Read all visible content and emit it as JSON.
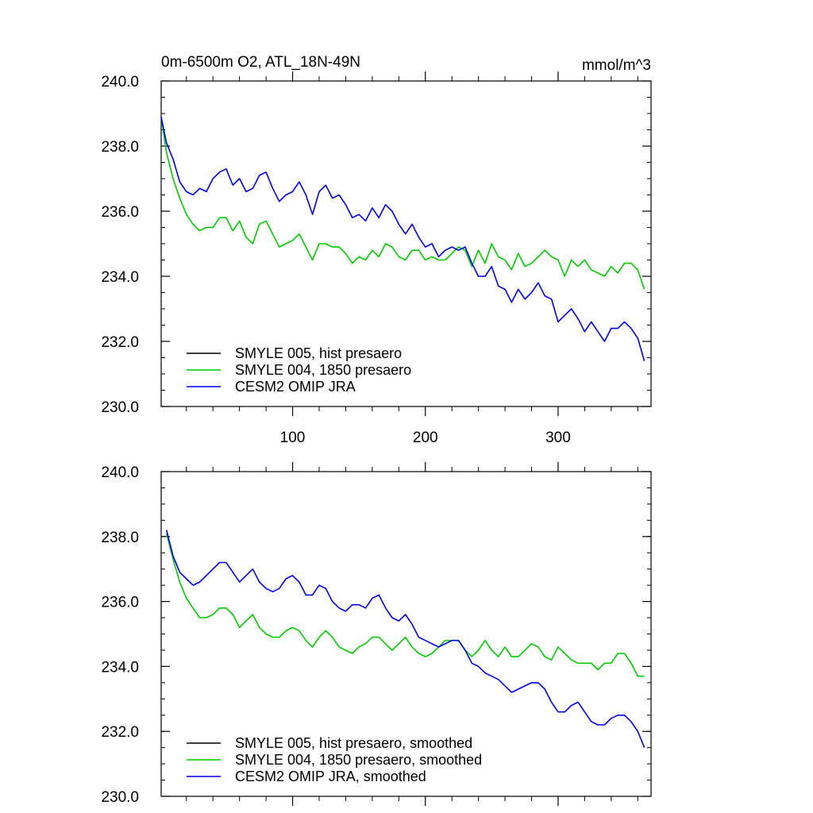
{
  "figure": {
    "left_title": "0m-6500m O2, ATL_18N-49N",
    "right_title": "mmol/m^3"
  },
  "chart_data": [
    {
      "type": "line",
      "panel": "top",
      "title": "0m-6500m O2, ATL_18N-49N",
      "units": "mmol/m^3",
      "xlim": [
        1,
        370
      ],
      "ylim": [
        230.0,
        240.0
      ],
      "xticks": [
        100,
        200,
        300
      ],
      "xtick_labels": [
        "100",
        "200",
        "300"
      ],
      "yticks": [
        230.0,
        232.0,
        234.0,
        236.0,
        238.0,
        240.0
      ],
      "ytick_labels": [
        "230.0",
        "232.0",
        "234.0",
        "236.0",
        "238.0",
        "240.0"
      ],
      "legend_position": "bottom-left",
      "series": [
        {
          "name": "SMYLE 005, hist presaero",
          "color": "#000000",
          "x": [],
          "y": []
        },
        {
          "name": "SMYLE 004, 1850 presaero",
          "color": "#00cc00",
          "x": [
            1,
            5,
            10,
            15,
            20,
            25,
            30,
            35,
            40,
            45,
            50,
            55,
            60,
            65,
            70,
            75,
            80,
            85,
            90,
            95,
            100,
            105,
            110,
            115,
            120,
            125,
            130,
            135,
            140,
            145,
            150,
            155,
            160,
            165,
            170,
            175,
            180,
            185,
            190,
            195,
            200,
            205,
            210,
            215,
            220,
            225,
            230,
            235,
            240,
            245,
            250,
            255,
            260,
            265,
            270,
            275,
            280,
            285,
            290,
            295,
            300,
            305,
            310,
            315,
            320,
            325,
            330,
            335,
            340,
            345,
            350,
            355,
            360,
            365
          ],
          "y": [
            238.9,
            237.8,
            237.0,
            236.4,
            235.9,
            235.6,
            235.4,
            235.5,
            235.5,
            235.8,
            235.8,
            235.4,
            235.7,
            235.2,
            235.0,
            235.6,
            235.7,
            235.3,
            234.9,
            235.0,
            235.1,
            235.3,
            234.9,
            234.5,
            235.0,
            235.0,
            234.9,
            234.9,
            234.7,
            234.4,
            234.6,
            234.5,
            234.8,
            234.6,
            235.0,
            234.9,
            234.6,
            234.5,
            234.8,
            234.8,
            234.5,
            234.6,
            234.5,
            234.5,
            234.7,
            234.9,
            234.8,
            234.3,
            234.8,
            234.4,
            235.0,
            234.6,
            234.5,
            234.2,
            234.7,
            234.3,
            234.4,
            234.6,
            234.8,
            234.6,
            234.5,
            234.0,
            234.5,
            234.3,
            234.5,
            234.2,
            234.1,
            234.0,
            234.3,
            234.1,
            234.4,
            234.4,
            234.2,
            233.6
          ]
        },
        {
          "name": "CESM2 OMIP JRA",
          "color": "#0000ee",
          "x": [
            1,
            5,
            10,
            15,
            20,
            25,
            30,
            35,
            40,
            45,
            50,
            55,
            60,
            65,
            70,
            75,
            80,
            85,
            90,
            95,
            100,
            105,
            110,
            115,
            120,
            125,
            130,
            135,
            140,
            145,
            150,
            155,
            160,
            165,
            170,
            175,
            180,
            185,
            190,
            195,
            200,
            205,
            210,
            215,
            220,
            225,
            230,
            235,
            240,
            245,
            250,
            255,
            260,
            265,
            270,
            275,
            280,
            285,
            290,
            295,
            300,
            305,
            310,
            315,
            320,
            325,
            330,
            335,
            340,
            345,
            350,
            355,
            360,
            365
          ],
          "y": [
            238.9,
            238.1,
            237.6,
            236.9,
            236.6,
            236.5,
            236.7,
            236.6,
            237.0,
            237.2,
            237.3,
            236.8,
            237.0,
            236.6,
            236.7,
            237.1,
            237.2,
            236.7,
            236.3,
            236.5,
            236.6,
            236.9,
            236.5,
            235.9,
            236.6,
            236.8,
            236.4,
            236.5,
            236.2,
            235.8,
            235.9,
            235.7,
            236.1,
            235.8,
            236.2,
            236.0,
            235.6,
            235.3,
            235.6,
            235.2,
            234.9,
            235.0,
            234.6,
            234.8,
            234.9,
            234.8,
            234.9,
            234.4,
            234.0,
            234.0,
            234.3,
            233.7,
            233.6,
            233.2,
            233.6,
            233.3,
            233.5,
            233.8,
            233.4,
            233.3,
            232.6,
            232.8,
            233.0,
            232.7,
            232.3,
            232.6,
            232.3,
            232.0,
            232.4,
            232.4,
            232.6,
            232.4,
            232.1,
            231.4
          ]
        }
      ]
    },
    {
      "type": "line",
      "panel": "bottom",
      "xlim": [
        1,
        370
      ],
      "ylim": [
        230.0,
        240.0
      ],
      "xticks": [
        100,
        200,
        300
      ],
      "yticks": [
        230.0,
        232.0,
        234.0,
        236.0,
        238.0,
        240.0
      ],
      "ytick_labels": [
        "230.0",
        "232.0",
        "234.0",
        "236.0",
        "238.0",
        "240.0"
      ],
      "legend_position": "bottom-left",
      "series": [
        {
          "name": "SMYLE 005, hist presaero, smoothed",
          "color": "#000000",
          "x": [],
          "y": []
        },
        {
          "name": "SMYLE 004, 1850 presaero, smoothed",
          "color": "#00cc00",
          "x": [
            5,
            10,
            15,
            20,
            25,
            30,
            35,
            40,
            45,
            50,
            55,
            60,
            65,
            70,
            75,
            80,
            85,
            90,
            95,
            100,
            105,
            110,
            115,
            120,
            125,
            130,
            135,
            140,
            145,
            150,
            155,
            160,
            165,
            170,
            175,
            180,
            185,
            190,
            195,
            200,
            205,
            210,
            215,
            220,
            225,
            230,
            235,
            240,
            245,
            250,
            255,
            260,
            265,
            270,
            275,
            280,
            285,
            290,
            295,
            300,
            305,
            310,
            315,
            320,
            325,
            330,
            335,
            340,
            345,
            350,
            355,
            360,
            365
          ],
          "y": [
            238.1,
            237.3,
            236.6,
            236.1,
            235.8,
            235.5,
            235.5,
            235.6,
            235.8,
            235.8,
            235.6,
            235.2,
            235.4,
            235.6,
            235.2,
            235.0,
            234.9,
            234.9,
            235.1,
            235.2,
            235.1,
            234.8,
            234.6,
            234.9,
            235.1,
            234.9,
            234.6,
            234.5,
            234.4,
            234.6,
            234.7,
            234.9,
            234.9,
            234.7,
            234.5,
            234.7,
            234.9,
            234.6,
            234.4,
            234.3,
            234.4,
            234.6,
            234.8,
            234.8,
            234.8,
            234.5,
            234.3,
            234.5,
            234.8,
            234.5,
            234.3,
            234.6,
            234.3,
            234.3,
            234.5,
            234.7,
            234.6,
            234.3,
            234.2,
            234.6,
            234.4,
            234.2,
            234.1,
            234.1,
            234.1,
            233.9,
            234.1,
            234.1,
            234.4,
            234.4,
            234.1,
            233.7,
            233.7
          ]
        },
        {
          "name": "CESM2 OMIP JRA, smoothed",
          "color": "#0000ee",
          "x": [
            5,
            10,
            15,
            20,
            25,
            30,
            35,
            40,
            45,
            50,
            55,
            60,
            65,
            70,
            75,
            80,
            85,
            90,
            95,
            100,
            105,
            110,
            115,
            120,
            125,
            130,
            135,
            140,
            145,
            150,
            155,
            160,
            165,
            170,
            175,
            180,
            185,
            190,
            195,
            200,
            205,
            210,
            215,
            220,
            225,
            230,
            235,
            240,
            245,
            250,
            255,
            260,
            265,
            270,
            275,
            280,
            285,
            290,
            295,
            300,
            305,
            310,
            315,
            320,
            325,
            330,
            335,
            340,
            345,
            350,
            355,
            360,
            365
          ],
          "y": [
            238.2,
            237.4,
            236.9,
            236.7,
            236.5,
            236.6,
            236.8,
            237.0,
            237.2,
            237.2,
            236.9,
            236.6,
            236.8,
            237.0,
            236.6,
            236.4,
            236.3,
            236.4,
            236.7,
            236.8,
            236.6,
            236.2,
            236.2,
            236.5,
            236.4,
            236.0,
            235.8,
            235.7,
            235.9,
            235.9,
            235.8,
            236.1,
            236.2,
            235.8,
            235.5,
            235.4,
            235.6,
            235.3,
            234.9,
            234.8,
            234.7,
            234.6,
            234.7,
            234.8,
            234.8,
            234.5,
            234.1,
            234.0,
            233.8,
            233.7,
            233.6,
            233.4,
            233.2,
            233.3,
            233.4,
            233.5,
            233.5,
            233.3,
            232.9,
            232.6,
            232.6,
            232.8,
            232.9,
            232.6,
            232.3,
            232.2,
            232.2,
            232.4,
            232.5,
            232.5,
            232.3,
            232.0,
            231.5
          ]
        }
      ]
    }
  ]
}
